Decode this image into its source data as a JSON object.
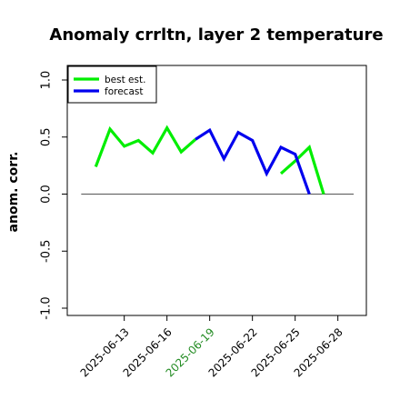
{
  "chart_data": {
    "type": "line",
    "title": "Anomaly crrltn, layer 2 temperature",
    "xlabel": "",
    "ylabel": "anom. corr.",
    "ylim": [
      -1.0,
      1.0
    ],
    "yticks": [
      "-1.0",
      "-0.5",
      "0.0",
      "0.5",
      "1.0"
    ],
    "ytick_values": [
      -1.0,
      -0.5,
      0.0,
      0.5,
      1.0
    ],
    "x": [
      "2025-06-11",
      "2025-06-12",
      "2025-06-13",
      "2025-06-14",
      "2025-06-15",
      "2025-06-16",
      "2025-06-17",
      "2025-06-18",
      "2025-06-19",
      "2025-06-20",
      "2025-06-21",
      "2025-06-22",
      "2025-06-23",
      "2025-06-24",
      "2025-06-25",
      "2025-06-26",
      "2025-06-27"
    ],
    "xlim": [
      "2025-06-09",
      "2025-06-30"
    ],
    "xticks": [
      "2025-06-13",
      "2025-06-16",
      "2025-06-19",
      "2025-06-22",
      "2025-06-25",
      "2025-06-28"
    ],
    "xtick_colors": [
      "#000000",
      "#000000",
      "#228b22",
      "#000000",
      "#000000",
      "#000000"
    ],
    "series": [
      {
        "name": "best est.",
        "color": "#00ee00",
        "values": [
          0.24,
          0.57,
          0.42,
          0.47,
          0.36,
          0.58,
          0.37,
          0.48,
          null,
          null,
          null,
          null,
          null,
          0.18,
          0.29,
          0.41,
          0.0
        ]
      },
      {
        "name": "forecast",
        "color": "#0000ee",
        "values": [
          null,
          null,
          null,
          null,
          null,
          null,
          null,
          0.48,
          0.56,
          0.31,
          0.54,
          0.47,
          0.18,
          0.41,
          0.35,
          0.0,
          null
        ]
      }
    ],
    "hline": 0.0,
    "legend": "top-left",
    "grid": false
  }
}
